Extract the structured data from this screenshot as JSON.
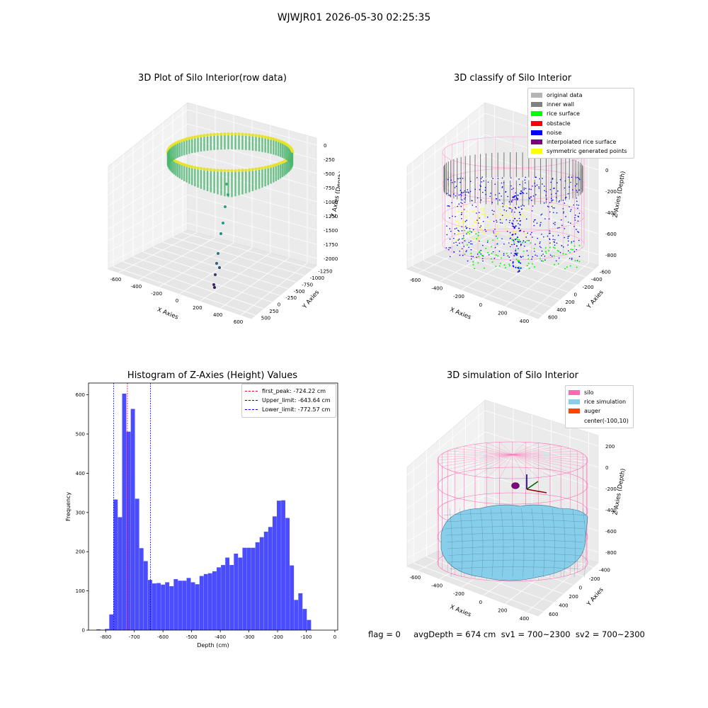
{
  "suptitle": "WJWJR01 2026-05-30 02:25:35",
  "panels": {
    "raw": {
      "title": "3D Plot of Silo Interior(row data)",
      "xlabel": "X Axies",
      "ylabel": "Y Axies",
      "zlabel": "Z Axies (Depth)",
      "xticks": [
        "-600",
        "-400",
        "-200",
        "0",
        "200",
        "400",
        "600"
      ],
      "yticks": [
        "500",
        "250",
        "0",
        "-250",
        "-500",
        "-750",
        "-1000",
        "-1250"
      ],
      "zticks": [
        "0",
        "-250",
        "-500",
        "-750",
        "-1000",
        "-1250",
        "-1500",
        "-1750",
        "-2000"
      ]
    },
    "classify": {
      "title": "3D classify of Silo Interior",
      "xlabel": "X Axies",
      "ylabel": "Y Axies",
      "zlabel": "Z Axies (Depth)",
      "xticks": [
        "-600",
        "-400",
        "-200",
        "0",
        "200",
        "400"
      ],
      "yticks": [
        "600",
        "400",
        "200",
        "0",
        "-200",
        "-400",
        "-600"
      ],
      "zticks": [
        "200",
        "0",
        "-200",
        "-400",
        "-600",
        "-800"
      ],
      "legend": [
        {
          "label": "original data",
          "color": "#b3b3b3"
        },
        {
          "label": "inner wall",
          "color": "#808080"
        },
        {
          "label": "rice surface",
          "color": "#00ff00"
        },
        {
          "label": "obstacle",
          "color": "#ff0000"
        },
        {
          "label": "noise",
          "color": "#0000ff"
        },
        {
          "label": "interpolated rice surface",
          "color": "#800080"
        },
        {
          "label": "symmetric generated points",
          "color": "#ffff00"
        }
      ]
    },
    "simulation": {
      "title": "3D simulation of Silo Interior",
      "xlabel": "X Axies",
      "ylabel": "Y Axies",
      "zlabel": "Z Axies (Depth)",
      "xticks": [
        "-600",
        "-400",
        "-200",
        "0",
        "200",
        "400"
      ],
      "yticks": [
        "600",
        "400",
        "200",
        "0",
        "-200",
        "-400"
      ],
      "zticks": [
        "200",
        "0",
        "-200",
        "-400",
        "-600",
        "-800"
      ],
      "legend": [
        {
          "label": "silo",
          "color": "#ff69b4"
        },
        {
          "label": "rice simulation",
          "color": "#87ceeb"
        },
        {
          "label": "auger",
          "color": "#ff4500"
        },
        {
          "label": "center(-100,10)",
          "color": ""
        }
      ]
    }
  },
  "chart_data": {
    "type": "bar",
    "title": "Histogram of Z-Axies (Height) Values",
    "xlabel": "Depth (cm)",
    "ylabel": "Frequency",
    "xlim": [
      -860,
      10
    ],
    "ylim": [
      0,
      630
    ],
    "xticks": [
      -800,
      -700,
      -600,
      -500,
      -400,
      -300,
      -200,
      -100,
      0
    ],
    "yticks": [
      0,
      100,
      200,
      300,
      400,
      500,
      600
    ],
    "bar_color": "#0000ff",
    "bin_width": 15,
    "bins": [
      {
        "x": -825,
        "v": 2
      },
      {
        "x": -810,
        "v": 1
      },
      {
        "x": -795,
        "v": 3
      },
      {
        "x": -780,
        "v": 40
      },
      {
        "x": -765,
        "v": 333
      },
      {
        "x": -750,
        "v": 288
      },
      {
        "x": -735,
        "v": 603
      },
      {
        "x": -720,
        "v": 506
      },
      {
        "x": -705,
        "v": 564
      },
      {
        "x": -690,
        "v": 335
      },
      {
        "x": -675,
        "v": 209
      },
      {
        "x": -660,
        "v": 176
      },
      {
        "x": -645,
        "v": 128
      },
      {
        "x": -630,
        "v": 119
      },
      {
        "x": -615,
        "v": 120
      },
      {
        "x": -600,
        "v": 116
      },
      {
        "x": -585,
        "v": 122
      },
      {
        "x": -570,
        "v": 112
      },
      {
        "x": -555,
        "v": 130
      },
      {
        "x": -540,
        "v": 126
      },
      {
        "x": -525,
        "v": 126
      },
      {
        "x": -510,
        "v": 133
      },
      {
        "x": -495,
        "v": 122
      },
      {
        "x": -480,
        "v": 117
      },
      {
        "x": -465,
        "v": 138
      },
      {
        "x": -450,
        "v": 143
      },
      {
        "x": -435,
        "v": 145
      },
      {
        "x": -420,
        "v": 150
      },
      {
        "x": -405,
        "v": 160
      },
      {
        "x": -390,
        "v": 166
      },
      {
        "x": -375,
        "v": 185
      },
      {
        "x": -360,
        "v": 166
      },
      {
        "x": -345,
        "v": 195
      },
      {
        "x": -330,
        "v": 185
      },
      {
        "x": -315,
        "v": 210
      },
      {
        "x": -300,
        "v": 210
      },
      {
        "x": -285,
        "v": 210
      },
      {
        "x": -270,
        "v": 224
      },
      {
        "x": -255,
        "v": 237
      },
      {
        "x": -240,
        "v": 251
      },
      {
        "x": -225,
        "v": 263
      },
      {
        "x": -210,
        "v": 290
      },
      {
        "x": -195,
        "v": 330
      },
      {
        "x": -180,
        "v": 331
      },
      {
        "x": -165,
        "v": 286
      },
      {
        "x": -150,
        "v": 165
      },
      {
        "x": -135,
        "v": 77
      },
      {
        "x": -120,
        "v": 94
      },
      {
        "x": -105,
        "v": 54
      },
      {
        "x": -90,
        "v": 26
      }
    ],
    "vlines": [
      {
        "x": -724.22,
        "color": "#ff0000",
        "label": "first_peak: -724.22 cm"
      },
      {
        "x": -643.64,
        "color": "#0000ff",
        "label": "Upper_limit: -643.64 cm"
      },
      {
        "x": -772.57,
        "color": "#0000ff",
        "label": "Lower_limit: -772.57 cm"
      }
    ],
    "legend_position": "upper right"
  },
  "footer": {
    "text": "flag = 0     avgDepth = 674 cm  sv1 = 700~2300  sv2 = 700~2300"
  }
}
